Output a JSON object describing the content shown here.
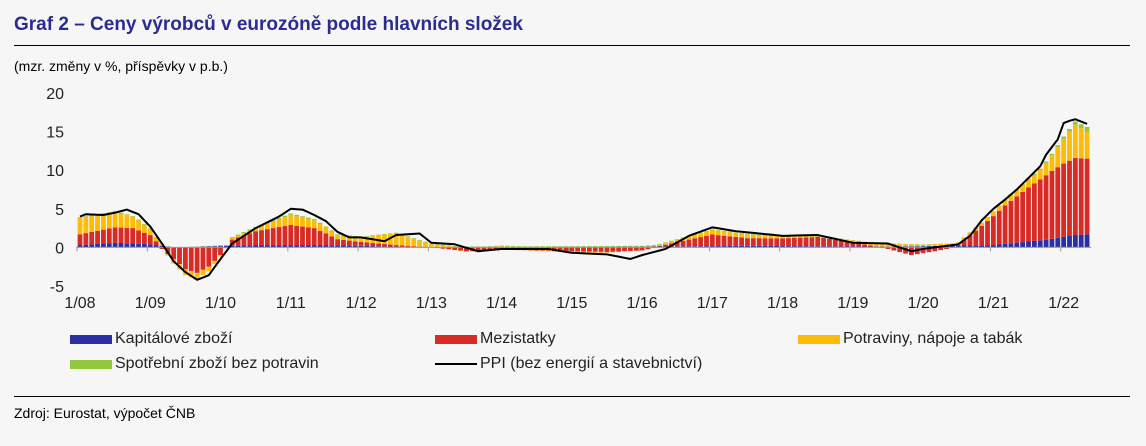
{
  "title": "Graf 2 – Ceny výrobců v eurozóně podle hlavních složek",
  "units_label": "(mzr. změny v %, příspěvky v p.b.)",
  "source": "Zdroj: Eurostat, výpočet ČNB",
  "chart_data": {
    "type": "bar",
    "stacked": true,
    "frequency": "monthly",
    "x_start": "2008-01",
    "x_ticks": [
      "1/08",
      "1/09",
      "1/10",
      "1/11",
      "1/12",
      "1/13",
      "1/14",
      "1/15",
      "1/16",
      "1/17",
      "1/18",
      "1/19",
      "1/20",
      "1/21",
      "1/22"
    ],
    "y_ticks": [
      20,
      15,
      10,
      5,
      0,
      -5
    ],
    "ylim": [
      -5,
      20
    ],
    "grid": false,
    "legend_position": "bottom",
    "series": [
      {
        "name": "Kapitálové zboží",
        "color": "#2a2fa6",
        "keyframes": [
          [
            0,
            0.3
          ],
          [
            6,
            0.6
          ],
          [
            12,
            0.4
          ],
          [
            16,
            0.0
          ],
          [
            30,
            0.3
          ],
          [
            42,
            0.3
          ],
          [
            60,
            0.0
          ],
          [
            96,
            0.1
          ],
          [
            114,
            0.2
          ],
          [
            138,
            0.1
          ],
          [
            156,
            0.3
          ],
          [
            165,
            1.0
          ],
          [
            170,
            1.6
          ],
          [
            172,
            1.7
          ]
        ]
      },
      {
        "name": "Mezistatky",
        "color": "#d92b26",
        "keyframes": [
          [
            0,
            1.4
          ],
          [
            6,
            2.0
          ],
          [
            9,
            2.0
          ],
          [
            12,
            1.2
          ],
          [
            14,
            -0.2
          ],
          [
            16,
            -1.5
          ],
          [
            18,
            -2.8
          ],
          [
            20,
            -3.3
          ],
          [
            22,
            -2.5
          ],
          [
            24,
            -1.0
          ],
          [
            26,
            0.8
          ],
          [
            30,
            1.8
          ],
          [
            36,
            2.6
          ],
          [
            40,
            2.2
          ],
          [
            44,
            0.8
          ],
          [
            48,
            0.5
          ],
          [
            54,
            0.2
          ],
          [
            60,
            0.0
          ],
          [
            66,
            -0.5
          ],
          [
            72,
            -0.3
          ],
          [
            84,
            -0.5
          ],
          [
            90,
            -0.6
          ],
          [
            96,
            -0.4
          ],
          [
            108,
            1.5
          ],
          [
            114,
            1.0
          ],
          [
            120,
            1.0
          ],
          [
            126,
            1.2
          ],
          [
            132,
            0.5
          ],
          [
            138,
            -0.2
          ],
          [
            142,
            -1.0
          ],
          [
            146,
            -0.5
          ],
          [
            150,
            0.1
          ],
          [
            154,
            2.5
          ],
          [
            158,
            5.0
          ],
          [
            162,
            7.0
          ],
          [
            166,
            8.8
          ],
          [
            168,
            9.5
          ],
          [
            170,
            10.0
          ],
          [
            172,
            9.8
          ]
        ]
      },
      {
        "name": "Potraviny, nápoje a tabák",
        "color": "#fdbc0a",
        "keyframes": [
          [
            0,
            2.1
          ],
          [
            6,
            2.0
          ],
          [
            10,
            1.3
          ],
          [
            14,
            0.2
          ],
          [
            16,
            -0.6
          ],
          [
            18,
            -0.8
          ],
          [
            20,
            -0.8
          ],
          [
            22,
            -0.6
          ],
          [
            24,
            -0.2
          ],
          [
            26,
            0.2
          ],
          [
            30,
            0.4
          ],
          [
            36,
            1.3
          ],
          [
            40,
            1.0
          ],
          [
            44,
            0.5
          ],
          [
            48,
            0.6
          ],
          [
            54,
            1.5
          ],
          [
            60,
            0.4
          ],
          [
            66,
            -0.1
          ],
          [
            72,
            0.1
          ],
          [
            84,
            -0.2
          ],
          [
            96,
            0.0
          ],
          [
            108,
            0.6
          ],
          [
            114,
            0.5
          ],
          [
            120,
            0.3
          ],
          [
            126,
            0.1
          ],
          [
            132,
            0.3
          ],
          [
            138,
            0.4
          ],
          [
            144,
            0.2
          ],
          [
            154,
            0.4
          ],
          [
            160,
            0.8
          ],
          [
            164,
            1.2
          ],
          [
            166,
            2.0
          ],
          [
            168,
            3.2
          ],
          [
            170,
            4.3
          ],
          [
            172,
            3.5
          ]
        ]
      },
      {
        "name": "Spotřební zboží bez potravin",
        "color": "#92c83e",
        "keyframes": [
          [
            0,
            0.1
          ],
          [
            12,
            0.1
          ],
          [
            18,
            0.0
          ],
          [
            24,
            0.1
          ],
          [
            36,
            0.2
          ],
          [
            48,
            0.1
          ],
          [
            96,
            0.1
          ],
          [
            150,
            0.0
          ],
          [
            160,
            0.1
          ],
          [
            166,
            0.2
          ],
          [
            170,
            0.4
          ],
          [
            172,
            0.6
          ]
        ]
      }
    ],
    "ppi": {
      "name": "PPI (bez energií a stavebnictví)",
      "color": "#000000",
      "keyframes": [
        [
          0,
          4.0
        ],
        [
          1,
          4.3
        ],
        [
          4,
          4.2
        ],
        [
          6,
          4.5
        ],
        [
          8,
          4.9
        ],
        [
          10,
          4.3
        ],
        [
          12,
          2.7
        ],
        [
          14,
          0.5
        ],
        [
          16,
          -1.8
        ],
        [
          18,
          -3.2
        ],
        [
          20,
          -4.2
        ],
        [
          22,
          -3.6
        ],
        [
          24,
          -1.5
        ],
        [
          26,
          0.5
        ],
        [
          30,
          2.5
        ],
        [
          34,
          4.0
        ],
        [
          36,
          5.0
        ],
        [
          38,
          4.9
        ],
        [
          40,
          4.2
        ],
        [
          42,
          3.4
        ],
        [
          44,
          2.0
        ],
        [
          46,
          1.3
        ],
        [
          48,
          1.3
        ],
        [
          52,
          0.8
        ],
        [
          54,
          1.6
        ],
        [
          58,
          1.8
        ],
        [
          60,
          0.6
        ],
        [
          64,
          0.4
        ],
        [
          68,
          -0.5
        ],
        [
          72,
          -0.2
        ],
        [
          80,
          -0.2
        ],
        [
          84,
          -0.7
        ],
        [
          90,
          -0.9
        ],
        [
          94,
          -1.5
        ],
        [
          96,
          -1.0
        ],
        [
          100,
          -0.2
        ],
        [
          104,
          1.5
        ],
        [
          108,
          2.6
        ],
        [
          112,
          2.1
        ],
        [
          120,
          1.5
        ],
        [
          126,
          1.6
        ],
        [
          132,
          0.6
        ],
        [
          138,
          0.5
        ],
        [
          142,
          -0.5
        ],
        [
          144,
          -0.2
        ],
        [
          148,
          0.2
        ],
        [
          150,
          0.4
        ],
        [
          152,
          1.5
        ],
        [
          154,
          3.5
        ],
        [
          156,
          5.0
        ],
        [
          158,
          6.2
        ],
        [
          160,
          7.5
        ],
        [
          162,
          9.0
        ],
        [
          164,
          10.5
        ],
        [
          165,
          12.0
        ],
        [
          166,
          13.0
        ],
        [
          167,
          14.0
        ],
        [
          168,
          16.1
        ],
        [
          169,
          16.4
        ],
        [
          170,
          16.6
        ],
        [
          171,
          16.3
        ],
        [
          172,
          16.0
        ]
      ]
    }
  }
}
